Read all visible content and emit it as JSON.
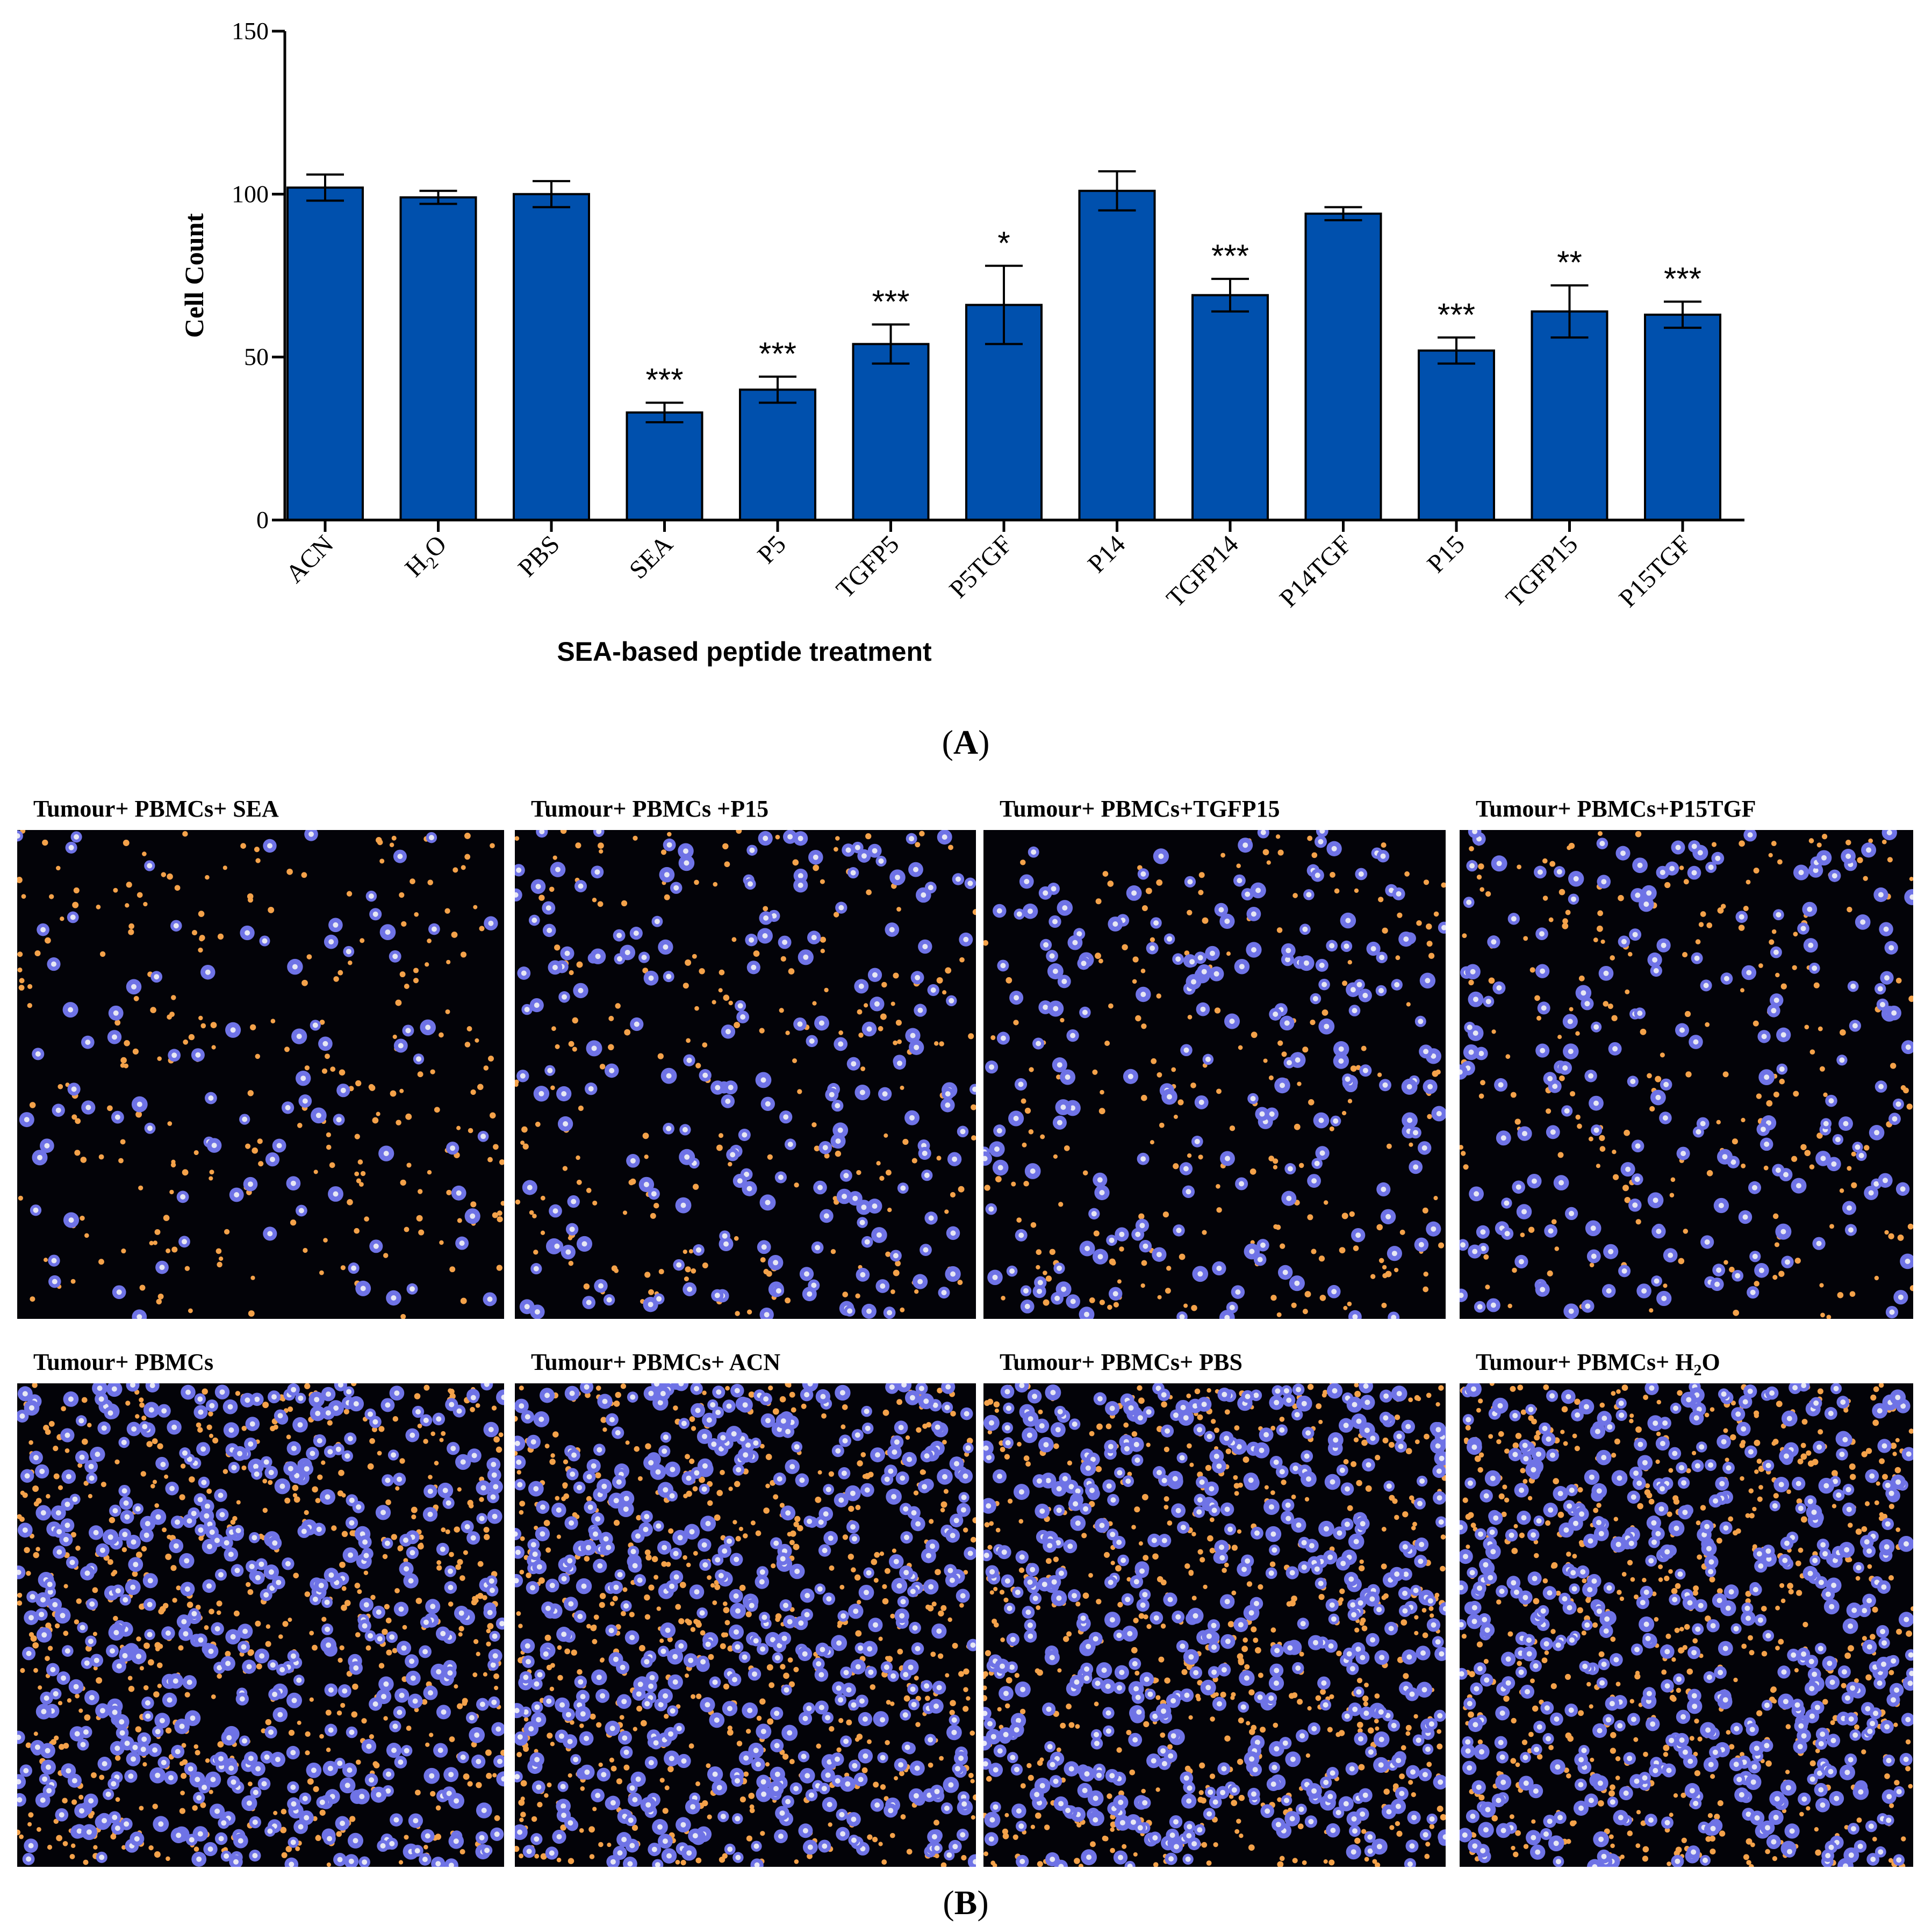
{
  "chart_data": {
    "type": "bar",
    "panel_label": "A",
    "xlabel": "SEA-based peptide treatment",
    "ylabel": "Cell Count",
    "ylim": [
      0,
      150
    ],
    "yticks": [
      0,
      50,
      100,
      150
    ],
    "categories": [
      "ACN",
      "H2O",
      "PBS",
      "SEA",
      "P5",
      "TGFP5",
      "P5TGF",
      "P14",
      "TGFP14",
      "P14TGF",
      "P15",
      "TGFP15",
      "P15TGF"
    ],
    "values": [
      102,
      99,
      100,
      33,
      40,
      54,
      66,
      101,
      69,
      94,
      52,
      64,
      63
    ],
    "errors": [
      4,
      2,
      4,
      3,
      4,
      6,
      12,
      6,
      5,
      2,
      4,
      8,
      4
    ],
    "significance": [
      "",
      "",
      "",
      "***",
      "***",
      "***",
      "*",
      "",
      "***",
      "",
      "***",
      "**",
      "***"
    ],
    "bar_color": "#0050ad",
    "grid": false,
    "legend": "none"
  },
  "figure_b": {
    "panel_label": "B",
    "images": [
      {
        "title": "Tumour+  PBMCs+ SEA",
        "density": "low"
      },
      {
        "title": "Tumour+  PBMCs +P15",
        "density": "medium"
      },
      {
        "title": "Tumour+  PBMCs+TGFP15",
        "density": "medium"
      },
      {
        "title": "Tumour+  PBMCs+P15TGF",
        "density": "medium"
      },
      {
        "title": "Tumour+  PBMCs",
        "density": "high"
      },
      {
        "title": "Tumour+  PBMCs+ ACN",
        "density": "high"
      },
      {
        "title": "Tumour+  PBMCs+ PBS",
        "density": "high"
      },
      {
        "title": "Tumour+  PBMCs+ H",
        "title_sub": "2",
        "title_suffix": "O",
        "density": "high"
      }
    ],
    "colors": {
      "tumour_cells": "#6f73e6",
      "pbmcs": "#f4a24a",
      "background": "#030308"
    }
  }
}
